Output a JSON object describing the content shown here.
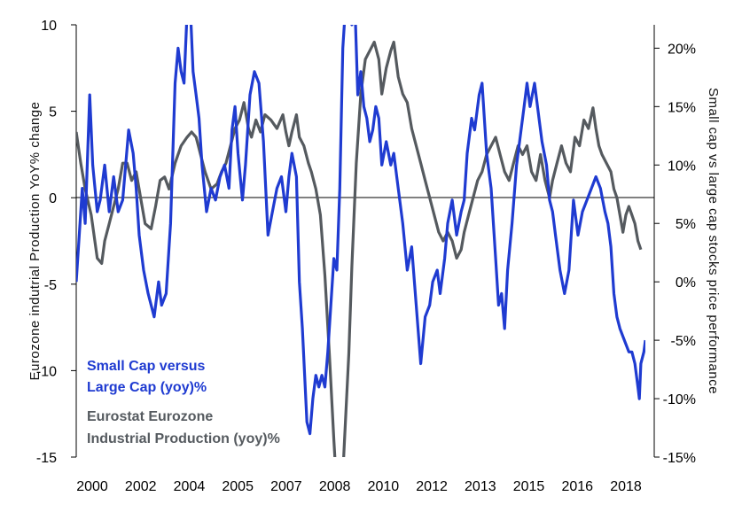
{
  "chart_data": {
    "type": "line",
    "title": "",
    "x_tick_labels": [
      "2000",
      "2002",
      "2004",
      "2005",
      "2007",
      "2008",
      "2010",
      "2012",
      "2013",
      "2015",
      "2016",
      "2018"
    ],
    "x_range": [
      2000.0,
      2019.0
    ],
    "left_axis": {
      "label": "Eurozone indutrial Production YoY% change",
      "ylim": [
        -15,
        10
      ],
      "ticks": [
        "10",
        "5",
        "0",
        "-5",
        "-10",
        "-15"
      ]
    },
    "right_axis": {
      "label": "Small cap vs large cap stocks price performance",
      "ylim": [
        -15,
        22
      ],
      "ticks": [
        "20%",
        "15%",
        "10%",
        "5%",
        "0%",
        "-5%",
        "-10%",
        "-15%"
      ]
    },
    "legend": {
      "small_cap_line1": "Small Cap versus",
      "small_cap_line2": "Large Cap (yoy)%",
      "ip_line1": "Eurostat Eurozone",
      "ip_line2": "Industrial Production (yoy)%"
    },
    "series": [
      {
        "name": "Small Cap versus Large Cap (yoy)%",
        "axis": "right",
        "color": "#1f3bd1",
        "points": [
          [
            2000.0,
            0
          ],
          [
            2000.1,
            4
          ],
          [
            2000.2,
            8
          ],
          [
            2000.3,
            5
          ],
          [
            2000.45,
            16
          ],
          [
            2000.55,
            10
          ],
          [
            2000.7,
            6
          ],
          [
            2000.8,
            7
          ],
          [
            2000.95,
            10
          ],
          [
            2001.1,
            6
          ],
          [
            2001.25,
            9
          ],
          [
            2001.4,
            6
          ],
          [
            2001.55,
            7
          ],
          [
            2001.75,
            13
          ],
          [
            2001.9,
            11
          ],
          [
            2002.0,
            8
          ],
          [
            2002.1,
            4
          ],
          [
            2002.25,
            1
          ],
          [
            2002.4,
            -1
          ],
          [
            2002.6,
            -3
          ],
          [
            2002.75,
            0
          ],
          [
            2002.85,
            -2
          ],
          [
            2003.0,
            -1
          ],
          [
            2003.15,
            5
          ],
          [
            2003.3,
            17
          ],
          [
            2003.4,
            20
          ],
          [
            2003.5,
            18
          ],
          [
            2003.6,
            17
          ],
          [
            2003.7,
            23
          ],
          [
            2003.8,
            24
          ],
          [
            2003.9,
            18
          ],
          [
            2004.0,
            16
          ],
          [
            2004.1,
            14
          ],
          [
            2004.2,
            10
          ],
          [
            2004.35,
            6
          ],
          [
            2004.5,
            8
          ],
          [
            2004.65,
            7
          ],
          [
            2004.8,
            9
          ],
          [
            2004.95,
            10
          ],
          [
            2005.1,
            8
          ],
          [
            2005.2,
            13
          ],
          [
            2005.3,
            15
          ],
          [
            2005.4,
            11
          ],
          [
            2005.55,
            7
          ],
          [
            2005.65,
            10
          ],
          [
            2005.8,
            16
          ],
          [
            2005.95,
            18
          ],
          [
            2006.1,
            17
          ],
          [
            2006.25,
            12
          ],
          [
            2006.4,
            4
          ],
          [
            2006.55,
            6
          ],
          [
            2006.7,
            8
          ],
          [
            2006.85,
            9
          ],
          [
            2007.0,
            6
          ],
          [
            2007.1,
            9
          ],
          [
            2007.2,
            11
          ],
          [
            2007.35,
            9
          ],
          [
            2007.45,
            0
          ],
          [
            2007.55,
            -4
          ],
          [
            2007.7,
            -12
          ],
          [
            2007.8,
            -13
          ],
          [
            2007.9,
            -10
          ],
          [
            2008.0,
            -8
          ],
          [
            2008.1,
            -9
          ],
          [
            2008.2,
            -8
          ],
          [
            2008.3,
            -9
          ],
          [
            2008.4,
            -6
          ],
          [
            2008.5,
            -2
          ],
          [
            2008.6,
            2
          ],
          [
            2008.7,
            1
          ],
          [
            2008.8,
            8
          ],
          [
            2008.9,
            20
          ],
          [
            2009.0,
            24
          ],
          [
            2009.1,
            23
          ],
          [
            2009.2,
            22
          ],
          [
            2009.3,
            24
          ],
          [
            2009.4,
            16
          ],
          [
            2009.5,
            18
          ],
          [
            2009.6,
            15
          ],
          [
            2009.7,
            14
          ],
          [
            2009.8,
            12
          ],
          [
            2009.9,
            13
          ],
          [
            2010.0,
            15
          ],
          [
            2010.1,
            14
          ],
          [
            2010.2,
            10
          ],
          [
            2010.35,
            12
          ],
          [
            2010.5,
            10
          ],
          [
            2010.6,
            11
          ],
          [
            2010.75,
            8
          ],
          [
            2010.9,
            5
          ],
          [
            2011.05,
            1
          ],
          [
            2011.2,
            3
          ],
          [
            2011.35,
            -2
          ],
          [
            2011.5,
            -7
          ],
          [
            2011.65,
            -3
          ],
          [
            2011.8,
            -2
          ],
          [
            2011.9,
            0
          ],
          [
            2012.05,
            1
          ],
          [
            2012.15,
            -1
          ],
          [
            2012.3,
            2
          ],
          [
            2012.4,
            5
          ],
          [
            2012.55,
            7
          ],
          [
            2012.7,
            4
          ],
          [
            2012.85,
            6
          ],
          [
            2012.95,
            7
          ],
          [
            2013.05,
            11
          ],
          [
            2013.2,
            14
          ],
          [
            2013.3,
            13
          ],
          [
            2013.45,
            16
          ],
          [
            2013.55,
            17
          ],
          [
            2013.7,
            11
          ],
          [
            2013.85,
            8
          ],
          [
            2014.0,
            2
          ],
          [
            2014.1,
            -2
          ],
          [
            2014.2,
            -1
          ],
          [
            2014.3,
            -4
          ],
          [
            2014.4,
            1
          ],
          [
            2014.55,
            5
          ],
          [
            2014.7,
            10
          ],
          [
            2014.85,
            13
          ],
          [
            2014.95,
            15
          ],
          [
            2015.05,
            17
          ],
          [
            2015.15,
            15
          ],
          [
            2015.3,
            17
          ],
          [
            2015.45,
            14
          ],
          [
            2015.55,
            12
          ],
          [
            2015.7,
            10
          ],
          [
            2015.8,
            7
          ],
          [
            2015.9,
            6
          ],
          [
            2016.0,
            4
          ],
          [
            2016.15,
            1
          ],
          [
            2016.3,
            -1
          ],
          [
            2016.45,
            1
          ],
          [
            2016.6,
            7
          ],
          [
            2016.75,
            4
          ],
          [
            2016.9,
            6
          ],
          [
            2017.05,
            7
          ],
          [
            2017.2,
            8
          ],
          [
            2017.35,
            9
          ],
          [
            2017.5,
            8
          ],
          [
            2017.65,
            6
          ],
          [
            2017.75,
            5
          ],
          [
            2017.85,
            3
          ],
          [
            2017.95,
            -1
          ],
          [
            2018.05,
            -3
          ],
          [
            2018.15,
            -4
          ],
          [
            2018.3,
            -5
          ],
          [
            2018.45,
            -6
          ],
          [
            2018.55,
            -6
          ],
          [
            2018.65,
            -7
          ],
          [
            2018.75,
            -9
          ],
          [
            2018.8,
            -10
          ],
          [
            2018.85,
            -7
          ],
          [
            2018.95,
            -6
          ],
          [
            2019.0,
            -5
          ]
        ]
      },
      {
        "name": "Eurostat Eurozone Industrial Production (yoy)%",
        "axis": "left",
        "color": "#555a5f",
        "points": [
          [
            2000.0,
            3.8
          ],
          [
            2000.15,
            2.0
          ],
          [
            2000.3,
            0.5
          ],
          [
            2000.5,
            -1.0
          ],
          [
            2000.7,
            -3.5
          ],
          [
            2000.85,
            -3.8
          ],
          [
            2000.95,
            -2.5
          ],
          [
            2001.1,
            -1.5
          ],
          [
            2001.25,
            -0.5
          ],
          [
            2001.4,
            0.5
          ],
          [
            2001.55,
            2.0
          ],
          [
            2001.7,
            2.0
          ],
          [
            2001.85,
            1.0
          ],
          [
            2002.0,
            1.5
          ],
          [
            2002.15,
            0.0
          ],
          [
            2002.3,
            -1.5
          ],
          [
            2002.5,
            -1.8
          ],
          [
            2002.65,
            -0.5
          ],
          [
            2002.8,
            1.0
          ],
          [
            2002.95,
            1.2
          ],
          [
            2003.1,
            0.5
          ],
          [
            2003.3,
            2.0
          ],
          [
            2003.5,
            3.0
          ],
          [
            2003.7,
            3.5
          ],
          [
            2003.85,
            3.8
          ],
          [
            2004.0,
            3.5
          ],
          [
            2004.15,
            2.5
          ],
          [
            2004.3,
            1.5
          ],
          [
            2004.5,
            0.5
          ],
          [
            2004.7,
            0.8
          ],
          [
            2004.85,
            1.5
          ],
          [
            2005.0,
            2.0
          ],
          [
            2005.15,
            3.0
          ],
          [
            2005.3,
            4.0
          ],
          [
            2005.45,
            4.5
          ],
          [
            2005.6,
            5.5
          ],
          [
            2005.75,
            4.0
          ],
          [
            2005.85,
            3.5
          ],
          [
            2006.0,
            4.5
          ],
          [
            2006.15,
            3.8
          ],
          [
            2006.3,
            4.8
          ],
          [
            2006.5,
            4.5
          ],
          [
            2006.7,
            4.0
          ],
          [
            2006.9,
            4.8
          ],
          [
            2007.0,
            3.8
          ],
          [
            2007.1,
            3.0
          ],
          [
            2007.2,
            3.8
          ],
          [
            2007.35,
            4.8
          ],
          [
            2007.45,
            3.5
          ],
          [
            2007.6,
            3.0
          ],
          [
            2007.75,
            2.0
          ],
          [
            2007.85,
            1.5
          ],
          [
            2008.0,
            0.5
          ],
          [
            2008.15,
            -1.0
          ],
          [
            2008.3,
            -4.5
          ],
          [
            2008.45,
            -9.0
          ],
          [
            2008.6,
            -14.0
          ],
          [
            2008.7,
            -17.0
          ],
          [
            2008.8,
            -18.0
          ],
          [
            2008.9,
            -16.0
          ],
          [
            2009.0,
            -12.5
          ],
          [
            2009.1,
            -9.0
          ],
          [
            2009.2,
            -4.0
          ],
          [
            2009.35,
            2.0
          ],
          [
            2009.5,
            6.0
          ],
          [
            2009.65,
            8.0
          ],
          [
            2009.8,
            8.5
          ],
          [
            2009.95,
            9.0
          ],
          [
            2010.1,
            8.0
          ],
          [
            2010.2,
            6.0
          ],
          [
            2010.35,
            7.5
          ],
          [
            2010.5,
            8.5
          ],
          [
            2010.6,
            9.0
          ],
          [
            2010.75,
            7.0
          ],
          [
            2010.9,
            6.0
          ],
          [
            2011.05,
            5.5
          ],
          [
            2011.2,
            4.0
          ],
          [
            2011.35,
            3.0
          ],
          [
            2011.5,
            2.0
          ],
          [
            2011.65,
            1.0
          ],
          [
            2011.8,
            0.0
          ],
          [
            2011.95,
            -1.0
          ],
          [
            2012.1,
            -2.0
          ],
          [
            2012.25,
            -2.5
          ],
          [
            2012.4,
            -2.0
          ],
          [
            2012.55,
            -2.5
          ],
          [
            2012.7,
            -3.5
          ],
          [
            2012.85,
            -3.0
          ],
          [
            2012.95,
            -2.0
          ],
          [
            2013.1,
            -1.0
          ],
          [
            2013.25,
            0.0
          ],
          [
            2013.4,
            1.0
          ],
          [
            2013.55,
            1.5
          ],
          [
            2013.7,
            2.5
          ],
          [
            2013.85,
            3.0
          ],
          [
            2014.0,
            3.5
          ],
          [
            2014.15,
            2.5
          ],
          [
            2014.3,
            1.5
          ],
          [
            2014.45,
            1.0
          ],
          [
            2014.6,
            2.0
          ],
          [
            2014.75,
            3.0
          ],
          [
            2014.9,
            2.5
          ],
          [
            2015.05,
            3.0
          ],
          [
            2015.2,
            1.5
          ],
          [
            2015.35,
            1.0
          ],
          [
            2015.5,
            2.5
          ],
          [
            2015.65,
            1.0
          ],
          [
            2015.8,
            0.0
          ],
          [
            2015.9,
            1.0
          ],
          [
            2016.05,
            2.0
          ],
          [
            2016.2,
            3.0
          ],
          [
            2016.35,
            2.0
          ],
          [
            2016.5,
            1.5
          ],
          [
            2016.65,
            3.5
          ],
          [
            2016.8,
            3.0
          ],
          [
            2016.95,
            4.5
          ],
          [
            2017.1,
            4.0
          ],
          [
            2017.25,
            5.2
          ],
          [
            2017.35,
            4.0
          ],
          [
            2017.45,
            3.0
          ],
          [
            2017.55,
            2.5
          ],
          [
            2017.7,
            2.0
          ],
          [
            2017.85,
            1.5
          ],
          [
            2017.95,
            0.5
          ],
          [
            2018.05,
            0.0
          ],
          [
            2018.15,
            -1.0
          ],
          [
            2018.25,
            -2.0
          ],
          [
            2018.35,
            -1.0
          ],
          [
            2018.45,
            -0.5
          ],
          [
            2018.55,
            -1.0
          ],
          [
            2018.65,
            -1.5
          ],
          [
            2018.75,
            -2.5
          ],
          [
            2018.85,
            -3.0
          ]
        ]
      }
    ]
  }
}
